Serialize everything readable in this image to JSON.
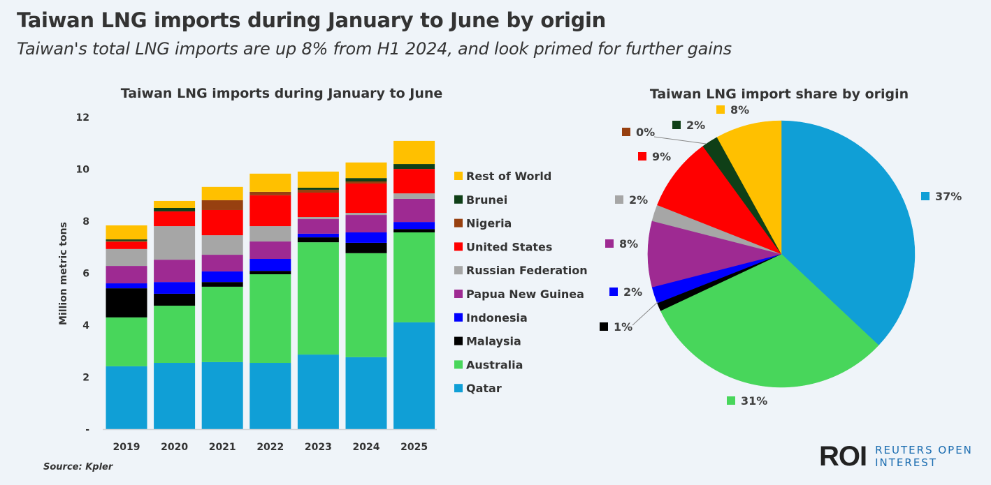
{
  "header": {
    "title": "Taiwan LNG imports during January to June by origin",
    "subtitle": "Taiwan's total LNG imports are up 8% from H1 2024, and look primed for further gains"
  },
  "footer": {
    "source": "Source: Kpler",
    "logo_mark": "ROI",
    "logo_line1": "REUTERS OPEN",
    "logo_line2": "INTEREST"
  },
  "colors": {
    "Qatar": "#109fd6",
    "Australia": "#48d65b",
    "Malaysia": "#000000",
    "Indonesia": "#0000ff",
    "Papua New Guinea": "#9e2a92",
    "Russian Federation": "#a6a6a6",
    "United States": "#ff0000",
    "Nigeria": "#974010",
    "Brunei": "#0f3f17",
    "Rest of World": "#ffc000",
    "background": "#eff4f9"
  },
  "chart_data": [
    {
      "type": "bar",
      "stacked": true,
      "title": "Taiwan LNG imports during January to June",
      "ylabel": "Million metric tons",
      "xlabel": "",
      "categories": [
        "2019",
        "2020",
        "2021",
        "2022",
        "2023",
        "2024",
        "2025"
      ],
      "ylim": [
        0,
        12
      ],
      "yticks": [
        0,
        2,
        4,
        6,
        8,
        10,
        12
      ],
      "ytick_labels": [
        "-",
        "2",
        "4",
        "6",
        "8",
        "10",
        "12"
      ],
      "grid": false,
      "legend_placement": "right",
      "series": [
        {
          "name": "Qatar",
          "values": [
            2.42,
            2.55,
            2.58,
            2.55,
            2.87,
            2.77,
            4.11
          ]
        },
        {
          "name": "Australia",
          "values": [
            1.88,
            2.2,
            2.9,
            3.41,
            4.32,
            4.0,
            3.46
          ]
        },
        {
          "name": "Malaysia",
          "values": [
            1.12,
            0.46,
            0.18,
            0.13,
            0.19,
            0.4,
            0.13
          ]
        },
        {
          "name": "Indonesia",
          "values": [
            0.19,
            0.45,
            0.41,
            0.46,
            0.14,
            0.4,
            0.27
          ]
        },
        {
          "name": "Papua New Guinea",
          "values": [
            0.67,
            0.86,
            0.64,
            0.67,
            0.56,
            0.67,
            0.89
          ]
        },
        {
          "name": "Russian Federation",
          "values": [
            0.65,
            1.29,
            0.75,
            0.59,
            0.08,
            0.08,
            0.21
          ]
        },
        {
          "name": "United States",
          "values": [
            0.27,
            0.57,
            0.97,
            1.19,
            0.94,
            1.13,
            0.94
          ]
        },
        {
          "name": "Nigeria",
          "values": [
            0.05,
            0.0,
            0.38,
            0.13,
            0.11,
            0.08,
            0.0
          ]
        },
        {
          "name": "Brunei",
          "values": [
            0.05,
            0.13,
            0.0,
            0.0,
            0.08,
            0.13,
            0.19
          ]
        },
        {
          "name": "Rest of World",
          "values": [
            0.54,
            0.27,
            0.51,
            0.7,
            0.62,
            0.6,
            0.89
          ]
        }
      ]
    },
    {
      "type": "pie",
      "title": "Taiwan LNG import share by origin",
      "categories": [
        "Qatar",
        "Australia",
        "Malaysia",
        "Indonesia",
        "Papua New Guinea",
        "Russian Federation",
        "United States",
        "Nigeria",
        "Brunei",
        "Rest of World"
      ],
      "values": [
        37,
        31,
        1,
        2,
        8,
        2,
        9,
        0,
        2,
        8
      ],
      "labels": [
        "37%",
        "31%",
        "1%",
        "2%",
        "8%",
        "2%",
        "9%",
        "0%",
        "2%",
        "8%"
      ]
    }
  ]
}
